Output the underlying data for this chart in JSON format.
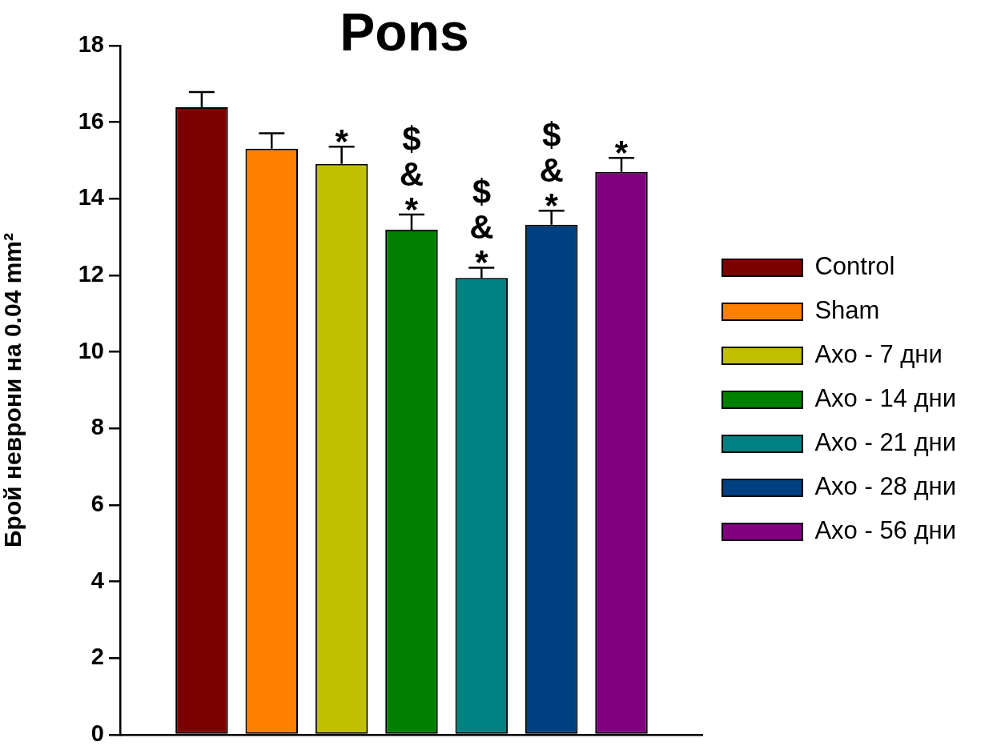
{
  "chart_data": {
    "type": "bar",
    "title": "Pons",
    "ylabel": "Брой неврони на 0.04 mm²",
    "categories": [
      null
    ],
    "series": [
      {
        "name": "Control",
        "color": "#7b0000",
        "values": [
          16.39
        ],
        "errors": [
          0.4
        ]
      },
      {
        "name": "Sham",
        "color": "#ff8000",
        "values": [
          15.31
        ],
        "errors": [
          0.4
        ]
      },
      {
        "name": "Axo - 7 дни",
        "color": "#c0c000",
        "values": [
          14.91
        ],
        "errors": [
          0.45
        ],
        "value_labels": [
          "*"
        ]
      },
      {
        "name": "Axo - 14 дни",
        "color": "#008000",
        "values": [
          13.19
        ],
        "errors": [
          0.4
        ],
        "value_labels": [
          "$ & *"
        ]
      },
      {
        "name": "Axo - 21 дни",
        "color": "#008080",
        "values": [
          11.93
        ],
        "errors": [
          0.27
        ],
        "value_labels": [
          "$ & *"
        ]
      },
      {
        "name": "Axo - 28 дни",
        "color": "#004080",
        "values": [
          13.32
        ],
        "errors": [
          0.37
        ],
        "value_labels": [
          "$ & *"
        ]
      },
      {
        "name": "Axo - 56 дни",
        "color": "#800080",
        "values": [
          14.7
        ],
        "errors": [
          0.37
        ],
        "value_labels": [
          "*"
        ]
      }
    ],
    "ylim": [
      0,
      18
    ],
    "yticks": [
      0,
      2,
      4,
      6,
      8,
      10,
      12,
      14,
      16,
      18
    ],
    "grid": false,
    "legend": "right",
    "tick_labels": "y"
  }
}
